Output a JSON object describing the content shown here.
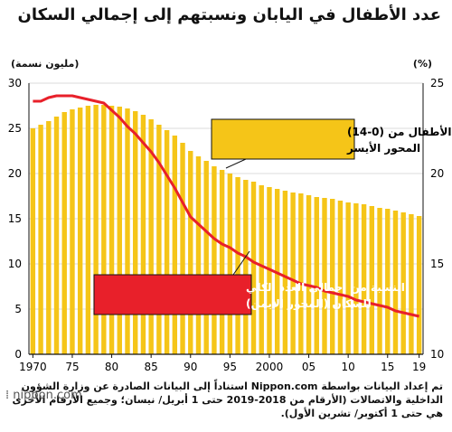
{
  "chart_data": {
    "type": "bar",
    "title": "عدد الأطفال في اليابان ونسبتهم إلى إجمالي السكان",
    "left_axis": {
      "unit": "(مليون نسمة)",
      "range": [
        0,
        30
      ],
      "ticks": [
        "0",
        "5",
        "10",
        "15",
        "20",
        "25",
        "30"
      ]
    },
    "right_axis": {
      "unit": "(%)",
      "range": [
        10,
        25
      ],
      "ticks": [
        "10",
        "15",
        "20",
        "25"
      ]
    },
    "x_tick_labels": [
      "1970",
      "75",
      "80",
      "85",
      "90",
      "95",
      "2000",
      "05",
      "10",
      "15",
      "19"
    ],
    "years": [
      1970,
      1971,
      1972,
      1973,
      1974,
      1975,
      1976,
      1977,
      1978,
      1979,
      1980,
      1981,
      1982,
      1983,
      1984,
      1985,
      1986,
      1987,
      1988,
      1989,
      1990,
      1991,
      1992,
      1993,
      1994,
      1995,
      1996,
      1997,
      1998,
      1999,
      2000,
      2001,
      2002,
      2003,
      2004,
      2005,
      2006,
      2007,
      2008,
      2009,
      2010,
      2011,
      2012,
      2013,
      2014,
      2015,
      2016,
      2017,
      2018,
      2019
    ],
    "series": [
      {
        "name": "عدد الأطفال (0-14) المحور الأيسر",
        "type": "bar",
        "color": "#F5C518",
        "values": [
          25.0,
          25.4,
          25.8,
          26.3,
          26.8,
          27.1,
          27.3,
          27.5,
          27.6,
          27.6,
          27.5,
          27.4,
          27.2,
          26.9,
          26.5,
          26.0,
          25.4,
          24.8,
          24.2,
          23.4,
          22.5,
          21.9,
          21.4,
          20.8,
          20.4,
          20.0,
          19.6,
          19.3,
          19.1,
          18.7,
          18.5,
          18.3,
          18.1,
          17.9,
          17.8,
          17.6,
          17.4,
          17.3,
          17.2,
          17.0,
          16.8,
          16.7,
          16.6,
          16.4,
          16.2,
          16.1,
          15.9,
          15.7,
          15.5,
          15.3
        ]
      },
      {
        "name": "النسبة من إجمالي العدد الكلي للسكان (المحور الأيمن)",
        "type": "line",
        "color": "#E8202A",
        "values": [
          24.0,
          24.0,
          24.2,
          24.3,
          24.3,
          24.3,
          24.2,
          24.1,
          24.0,
          23.9,
          23.5,
          23.1,
          22.6,
          22.2,
          21.7,
          21.2,
          20.6,
          19.9,
          19.2,
          18.4,
          17.6,
          17.2,
          16.8,
          16.4,
          16.1,
          15.9,
          15.6,
          15.4,
          15.1,
          14.9,
          14.7,
          14.5,
          14.3,
          14.1,
          13.9,
          13.8,
          13.7,
          13.5,
          13.4,
          13.3,
          13.2,
          13.0,
          12.9,
          12.8,
          12.7,
          12.6,
          12.4,
          12.3,
          12.2,
          12.1
        ]
      }
    ],
    "annotations": {
      "children_label": [
        "عدد الأطفال من (0-14)",
        "المحور الأيسر"
      ],
      "ratio_label": [
        "النسبة من إجمالي العدد الكلي",
        "للسكان (المحور الأيمن)"
      ]
    }
  },
  "footer": {
    "note": "تم إعداد البيانات بواسطة Nippon.com استناداً إلى البيانات الصادرة عن وزارة الشؤون الداخلية والاتصالات (الأرقام من 2018-2019 حتى 1 أبريل/ نيسان؛ وجميع الأرقام الأخرى هي حتى 1 أكتوبر/ تشرين الأول).",
    "logo": "nippon.com"
  },
  "colors": {
    "bar": "#F5C518",
    "line": "#E8202A",
    "callout_bg": "#F5C518",
    "axis": "#111111"
  }
}
